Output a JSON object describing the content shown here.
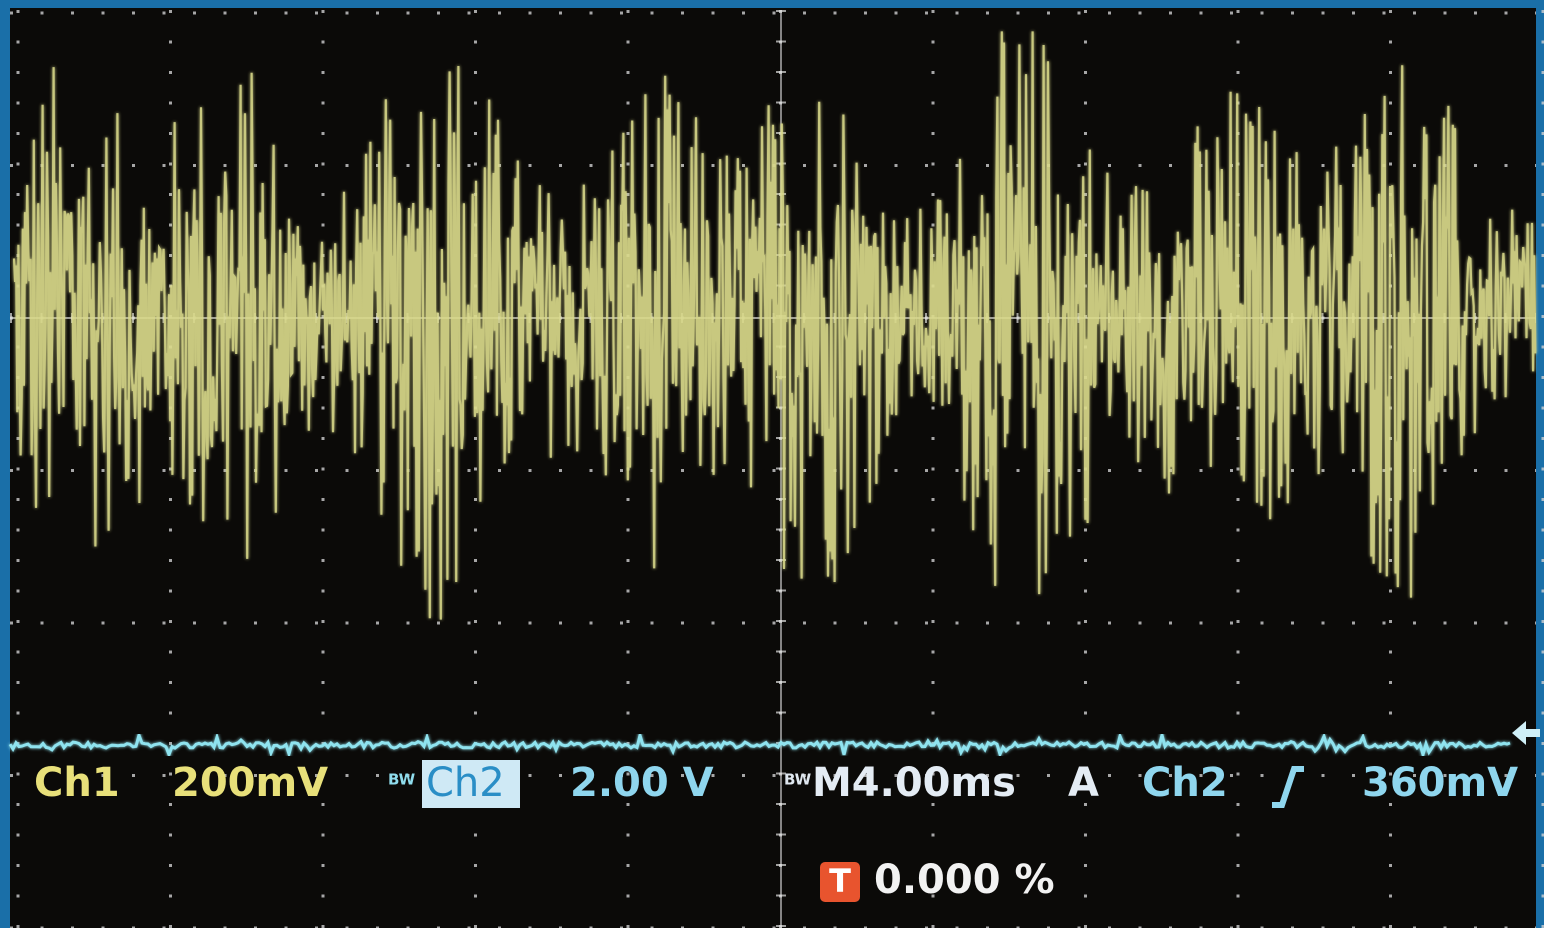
{
  "readout": {
    "bw_marker": "BW",
    "ch1": {
      "label": "Ch1",
      "scale": "200mV"
    },
    "ch2": {
      "label": "Ch2",
      "scale": "2.00 V"
    },
    "timebase": "M4.00ms",
    "trigger": {
      "mode": "A",
      "source": "Ch2",
      "level": "360mV",
      "icon": "T",
      "position": "0.000 %"
    }
  }
}
